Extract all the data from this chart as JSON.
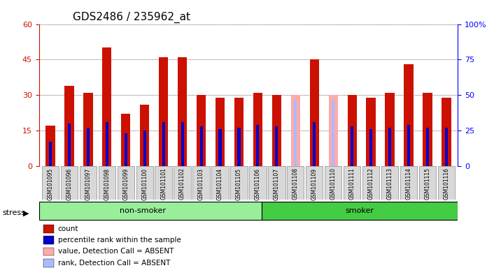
{
  "title": "GDS2486 / 235962_at",
  "samples": [
    "GSM101095",
    "GSM101096",
    "GSM101097",
    "GSM101098",
    "GSM101099",
    "GSM101100",
    "GSM101101",
    "GSM101102",
    "GSM101103",
    "GSM101104",
    "GSM101105",
    "GSM101106",
    "GSM101107",
    "GSM101108",
    "GSM101109",
    "GSM101110",
    "GSM101111",
    "GSM101112",
    "GSM101113",
    "GSM101114",
    "GSM101115",
    "GSM101116"
  ],
  "count_values": [
    17,
    34,
    31,
    50,
    22,
    26,
    46,
    46,
    30,
    29,
    29,
    31,
    30,
    30,
    45,
    30,
    30,
    29,
    31,
    43,
    31,
    29
  ],
  "percentile_values": [
    17,
    30,
    27,
    31,
    23,
    25,
    31,
    31,
    28,
    26,
    27,
    29,
    28,
    0,
    31,
    0,
    28,
    26,
    27,
    29,
    27,
    27
  ],
  "absent_count": [
    false,
    false,
    false,
    false,
    false,
    false,
    false,
    false,
    false,
    false,
    false,
    false,
    false,
    true,
    false,
    true,
    false,
    false,
    false,
    false,
    false,
    false
  ],
  "absent_rank": [
    false,
    false,
    false,
    false,
    false,
    false,
    false,
    false,
    false,
    false,
    false,
    false,
    false,
    true,
    false,
    true,
    false,
    false,
    false,
    false,
    false,
    false
  ],
  "absent_count_values": [
    0,
    0,
    0,
    0,
    0,
    0,
    0,
    0,
    0,
    0,
    0,
    0,
    0,
    30,
    0,
    30,
    0,
    0,
    0,
    0,
    0,
    0
  ],
  "absent_rank_values": [
    0,
    0,
    0,
    0,
    0,
    0,
    0,
    0,
    0,
    0,
    0,
    0,
    0,
    28,
    0,
    28,
    0,
    0,
    0,
    0,
    0,
    0
  ],
  "group_labels": [
    "non-smoker",
    "smoker"
  ],
  "group_ranges": [
    0,
    12,
    22
  ],
  "ylim_left": [
    0,
    60
  ],
  "ylim_right": [
    0,
    100
  ],
  "yticks_left": [
    0,
    15,
    30,
    45,
    60
  ],
  "yticks_right": [
    0,
    25,
    50,
    75,
    100
  ],
  "color_count": "#cc1100",
  "color_percentile": "#0000cc",
  "color_absent_count": "#ffaaaa",
  "color_absent_rank": "#aabbff",
  "bar_width": 0.5,
  "bg_color": "#d8d8d8",
  "nonsmoker_bg": "#99ee99",
  "smoker_bg": "#44cc44",
  "title_fontsize": 11,
  "axis_label_fontsize": 8
}
